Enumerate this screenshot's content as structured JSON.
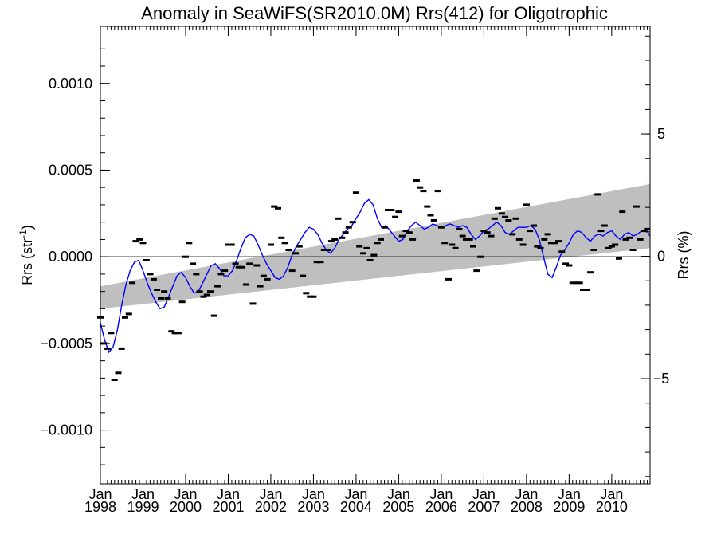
{
  "chart_data": {
    "type": "scatter",
    "title": "Anomaly in SeaWiFS(SR2010.0M) Rrs(412) for Oligotrophic",
    "ylabel_left": "Rrs (str",
    "ylabel_left_sup": "-1",
    "ylabel_left_tail": ")",
    "ylabel_right": "Rrs (%)",
    "xlim": [
      1998.0,
      2010.9
    ],
    "ylim": [
      -0.00131,
      0.00133
    ],
    "y2lim": [
      -9.3,
      9.4
    ],
    "grid": false,
    "legend": "none",
    "left_ticks": [
      {
        "value": 0.001,
        "label": "0.0010"
      },
      {
        "value": 0.0005,
        "label": "0.0005"
      },
      {
        "value": 0.0,
        "label": "0.0000"
      },
      {
        "value": -0.0005,
        "label": "−0.0005"
      },
      {
        "value": -0.001,
        "label": "−0.0010"
      }
    ],
    "right_ticks": [
      {
        "value": 5,
        "label": "5"
      },
      {
        "value": 0,
        "label": "0"
      },
      {
        "value": -5,
        "label": "−5"
      }
    ],
    "x_ticks": [
      {
        "value": 1998,
        "month": "Jan",
        "year": "1998"
      },
      {
        "value": 1999,
        "month": "Jan",
        "year": "1999"
      },
      {
        "value": 2000,
        "month": "Jan",
        "year": "2000"
      },
      {
        "value": 2001,
        "month": "Jan",
        "year": "2001"
      },
      {
        "value": 2002,
        "month": "Jan",
        "year": "2002"
      },
      {
        "value": 2003,
        "month": "Jan",
        "year": "2003"
      },
      {
        "value": 2004,
        "month": "Jan",
        "year": "2004"
      },
      {
        "value": 2005,
        "month": "Jan",
        "year": "2005"
      },
      {
        "value": 2006,
        "month": "Jan",
        "year": "2006"
      },
      {
        "value": 2007,
        "month": "Jan",
        "year": "2007"
      },
      {
        "value": 2008,
        "month": "Jan",
        "year": "2008"
      },
      {
        "value": 2009,
        "month": "Jan",
        "year": "2009"
      },
      {
        "value": 2010,
        "month": "Jan",
        "year": "2010"
      }
    ],
    "trend_band": {
      "x": [
        1998.0,
        2010.9
      ],
      "lower": [
        -0.0003,
        5e-05
      ],
      "upper": [
        -0.00017,
        0.00042
      ],
      "color": "#bfbfbf"
    },
    "zero_line": 0.0,
    "colors": {
      "monthly_markers": "#000000",
      "smoothed_line": "#0000ff"
    },
    "series": [
      {
        "name": "",
        "kind": "monthly anomaly markers",
        "x": [
          1998.0,
          1998.08,
          1998.17,
          1998.25,
          1998.33,
          1998.42,
          1998.5,
          1998.58,
          1998.67,
          1998.75,
          1998.83,
          1998.92,
          1999.0,
          1999.08,
          1999.17,
          1999.25,
          1999.33,
          1999.42,
          1999.5,
          1999.58,
          1999.67,
          1999.75,
          1999.83,
          1999.92,
          2000.0,
          2000.08,
          2000.17,
          2000.25,
          2000.33,
          2000.42,
          2000.5,
          2000.58,
          2000.67,
          2000.75,
          2000.83,
          2000.92,
          2001.0,
          2001.08,
          2001.17,
          2001.25,
          2001.33,
          2001.42,
          2001.5,
          2001.58,
          2001.67,
          2001.75,
          2001.83,
          2001.92,
          2002.0,
          2002.08,
          2002.17,
          2002.25,
          2002.33,
          2002.42,
          2002.5,
          2002.58,
          2002.67,
          2002.75,
          2002.83,
          2002.92,
          2003.0,
          2003.08,
          2003.17,
          2003.25,
          2003.33,
          2003.42,
          2003.5,
          2003.58,
          2003.67,
          2003.75,
          2003.83,
          2003.92,
          2004.0,
          2004.08,
          2004.17,
          2004.25,
          2004.33,
          2004.42,
          2004.5,
          2004.58,
          2004.67,
          2004.75,
          2004.83,
          2004.92,
          2005.0,
          2005.08,
          2005.17,
          2005.25,
          2005.33,
          2005.42,
          2005.5,
          2005.58,
          2005.67,
          2005.75,
          2005.83,
          2005.92,
          2006.0,
          2006.08,
          2006.17,
          2006.25,
          2006.33,
          2006.42,
          2006.5,
          2006.58,
          2006.67,
          2006.75,
          2006.83,
          2006.92,
          2007.0,
          2007.08,
          2007.17,
          2007.25,
          2007.33,
          2007.42,
          2007.5,
          2007.58,
          2007.67,
          2007.75,
          2007.83,
          2007.92,
          2008.0,
          2008.08,
          2008.17,
          2008.25,
          2008.33,
          2008.42,
          2008.5,
          2008.58,
          2008.67,
          2008.75,
          2008.83,
          2008.92,
          2009.0,
          2009.08,
          2009.17,
          2009.25,
          2009.33,
          2009.42,
          2009.5,
          2009.58,
          2009.67,
          2009.75,
          2009.83,
          2009.92,
          2010.0,
          2010.08,
          2010.17,
          2010.25,
          2010.33,
          2010.42,
          2010.5,
          2010.58,
          2010.67,
          2010.75,
          2010.83
        ],
        "y": [
          -0.00035,
          -0.0005,
          -0.00053,
          -0.00044,
          -0.00071,
          -0.00067,
          -0.00053,
          -0.00035,
          -0.00033,
          -0.00015,
          9e-05,
          0.0001,
          8e-05,
          -2e-05,
          -0.0001,
          -0.00013,
          -0.00019,
          -0.00024,
          -0.0002,
          -0.00024,
          -0.00043,
          -0.00044,
          -0.00044,
          -0.00026,
          0.0,
          8e-05,
          -4e-05,
          -0.0001,
          -0.0002,
          -0.00023,
          -0.00022,
          -0.0002,
          -0.00034,
          -0.00017,
          -0.0001,
          -8e-05,
          7e-05,
          7e-05,
          -4e-05,
          -6e-05,
          -6e-05,
          -0.00016,
          -4e-05,
          -0.00027,
          -5e-05,
          -0.00017,
          -0.00011,
          -0.00013,
          7e-05,
          0.00029,
          0.00028,
          0.00011,
          8e-05,
          4e-05,
          -8e-05,
          2e-05,
          6e-05,
          -0.00011,
          -0.00021,
          -0.00023,
          -0.00023,
          -3e-05,
          -3e-05,
          4e-05,
          4e-05,
          9e-05,
          0.0001,
          0.00022,
          0.00011,
          0.00014,
          0.00017,
          0.0002,
          0.00037,
          6e-05,
          2e-05,
          5e-05,
          -2e-05,
          1e-05,
          8e-05,
          0.0001,
          0.00017,
          0.00027,
          0.00027,
          0.00023,
          0.00026,
          0.00012,
          0.00015,
          0.00014,
          0.0001,
          0.00044,
          0.0004,
          0.00038,
          0.00029,
          0.00024,
          0.00021,
          0.00038,
          0.00017,
          8e-05,
          -0.00013,
          7e-05,
          5e-05,
          0.00016,
          0.00012,
          0.0001,
          0.0001,
          6e-05,
          -8e-05,
          0.0,
          0.00015,
          0.00014,
          0.00012,
          0.00022,
          0.00028,
          0.00025,
          0.00023,
          0.00021,
          0.00013,
          0.00022,
          0.0001,
          7e-05,
          0.0003,
          0.00015,
          0.00018,
          6e-05,
          5e-05,
          0.0001,
          0.00013,
          8e-05,
          8e-05,
          9e-05,
          3e-05,
          -4e-05,
          -5e-05,
          -0.00015,
          -0.00015,
          -0.00015,
          -0.00019,
          -0.00019,
          -9e-05,
          4e-05,
          0.00036,
          0.00015,
          0.00018,
          5e-05,
          6e-05,
          7e-05,
          -1e-05,
          0.00026,
          0.0001,
          0.00011,
          4e-05,
          0.00029,
          0.0001,
          0.00015,
          0.00016
        ]
      },
      {
        "name": "",
        "kind": "smoothed line",
        "x": [
          1998.0,
          1998.1,
          1998.2,
          1998.3,
          1998.4,
          1998.5,
          1998.6,
          1998.7,
          1998.8,
          1998.9,
          1999.0,
          1999.1,
          1999.2,
          1999.3,
          1999.4,
          1999.5,
          1999.6,
          1999.7,
          1999.8,
          1999.9,
          2000.0,
          2000.1,
          2000.2,
          2000.3,
          2000.4,
          2000.5,
          2000.6,
          2000.7,
          2000.8,
          2000.9,
          2001.0,
          2001.1,
          2001.2,
          2001.3,
          2001.4,
          2001.5,
          2001.6,
          2001.7,
          2001.8,
          2001.9,
          2002.0,
          2002.1,
          2002.2,
          2002.3,
          2002.4,
          2002.5,
          2002.6,
          2002.7,
          2002.8,
          2002.9,
          2003.0,
          2003.1,
          2003.2,
          2003.3,
          2003.4,
          2003.5,
          2003.6,
          2003.7,
          2003.8,
          2003.9,
          2004.0,
          2004.1,
          2004.2,
          2004.3,
          2004.4,
          2004.5,
          2004.6,
          2004.7,
          2004.8,
          2004.9,
          2005.0,
          2005.1,
          2005.2,
          2005.3,
          2005.4,
          2005.5,
          2005.6,
          2005.7,
          2005.8,
          2005.9,
          2006.0,
          2006.1,
          2006.2,
          2006.3,
          2006.4,
          2006.5,
          2006.6,
          2006.7,
          2006.8,
          2006.9,
          2007.0,
          2007.1,
          2007.2,
          2007.3,
          2007.4,
          2007.5,
          2007.6,
          2007.7,
          2007.8,
          2007.9,
          2008.0,
          2008.1,
          2008.2,
          2008.3,
          2008.4,
          2008.5,
          2008.6,
          2008.7,
          2008.8,
          2008.9,
          2009.0,
          2009.1,
          2009.2,
          2009.3,
          2009.4,
          2009.5,
          2009.6,
          2009.7,
          2009.8,
          2009.9,
          2010.0,
          2010.1,
          2010.2,
          2010.3,
          2010.4,
          2010.5,
          2010.6,
          2010.7,
          2010.8,
          2010.9
        ],
        "y": [
          -0.00038,
          -0.00048,
          -0.00055,
          -0.00052,
          -0.00042,
          -0.00028,
          -0.00016,
          -8e-05,
          -3e-05,
          -2e-05,
          -8e-05,
          -0.00015,
          -0.00021,
          -0.00026,
          -0.0003,
          -0.00029,
          -0.00023,
          -0.00017,
          -0.00011,
          -9e-05,
          -0.00012,
          -0.00017,
          -0.00021,
          -0.0002,
          -0.00015,
          -0.0001,
          -5e-05,
          -4e-05,
          -7e-05,
          -0.00011,
          -0.00011,
          -8e-05,
          -2e-05,
          5e-05,
          0.00011,
          0.00013,
          0.00012,
          7e-05,
          1e-05,
          -4e-05,
          -8e-05,
          -0.00012,
          -0.00013,
          -0.00011,
          -6e-05,
          1e-05,
          6e-05,
          0.0001,
          0.00014,
          0.00017,
          0.00016,
          0.00013,
          8e-05,
          4e-05,
          2e-05,
          5e-05,
          0.0001,
          0.00013,
          0.00016,
          0.00018,
          0.00022,
          0.00026,
          0.00031,
          0.00033,
          0.0003,
          0.00022,
          0.00017,
          0.00018,
          0.00015,
          0.00012,
          9e-05,
          0.0001,
          0.00015,
          0.00018,
          0.0002,
          0.00018,
          0.00016,
          0.00017,
          0.00019,
          0.00018,
          0.00017,
          0.00018,
          0.00019,
          0.00018,
          0.00017,
          0.00018,
          0.00017,
          0.00013,
          0.0001,
          0.00012,
          0.00015,
          0.00016,
          0.00018,
          0.0002,
          0.00018,
          0.00014,
          0.00013,
          0.00015,
          0.00017,
          0.00017,
          0.00017,
          0.00018,
          0.00016,
          0.0001,
          0.0,
          -0.0001,
          -0.00012,
          -6e-05,
          1e-05,
          4e-05,
          8e-05,
          0.00013,
          0.00015,
          0.00014,
          0.00011,
          9e-05,
          0.00012,
          0.00013,
          0.00012,
          0.00014,
          0.00015,
          0.00012,
          0.0001,
          0.00013,
          0.00014,
          0.00012,
          0.00013,
          0.00015,
          0.00016,
          0.00012
        ]
      }
    ]
  }
}
